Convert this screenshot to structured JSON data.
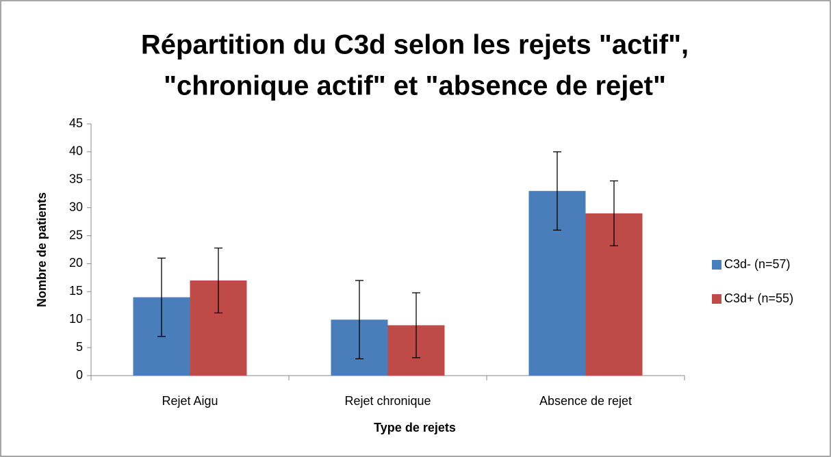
{
  "chart_data": {
    "type": "bar",
    "title": [
      "Répartition du C3d selon les rejets \"actif\",",
      "\"chronique actif\" et \"absence de rejet\""
    ],
    "x_label": "Type de rejets",
    "y_label": "Nombre de patients",
    "categories": [
      "Rejet Aigu",
      "Rejet chronique",
      "Absence de rejet"
    ],
    "series": [
      {
        "name": "C3d- (n=57)",
        "color": "#4a7ebb",
        "values": [
          14,
          10,
          33
        ],
        "errors": [
          7,
          7,
          7
        ]
      },
      {
        "name": "C3d+ (n=55)",
        "color": "#be4b48",
        "values": [
          17,
          9,
          29
        ],
        "errors": [
          5.8,
          5.8,
          5.8
        ]
      }
    ],
    "ylim": [
      0,
      45
    ],
    "yticks": [
      0,
      5,
      10,
      15,
      20,
      25,
      30,
      35,
      40,
      45
    ],
    "grid": false,
    "legend": "right"
  }
}
